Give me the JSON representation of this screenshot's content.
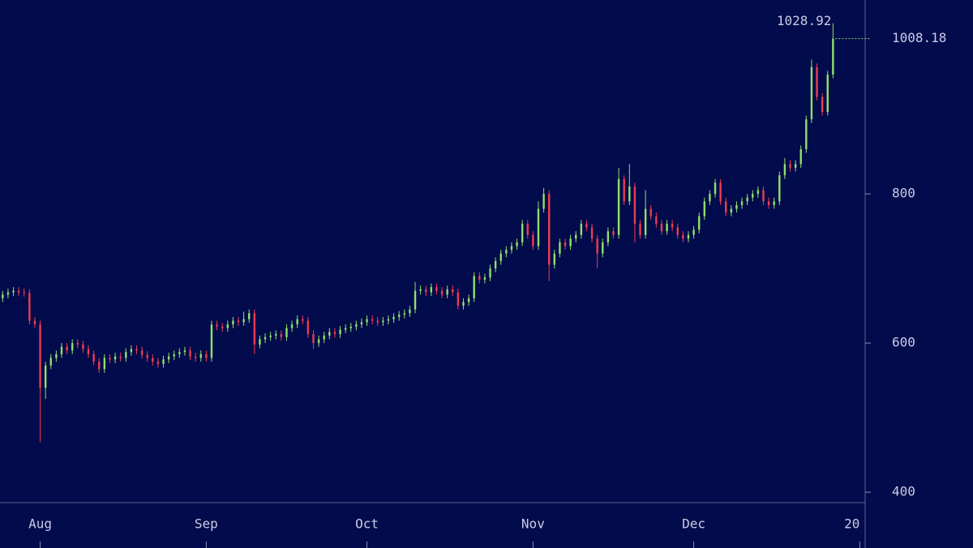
{
  "chart_data": {
    "type": "ohlc",
    "up_color": "#8fe06c",
    "down_color": "#ee3b52",
    "xlim": [
      -0.5,
      161
    ],
    "xticks": [
      {
        "value": 7,
        "label": "Aug"
      },
      {
        "value": 38,
        "label": "Sep"
      },
      {
        "value": 68,
        "label": "Oct"
      },
      {
        "value": 99,
        "label": "Nov"
      },
      {
        "value": 129,
        "label": "Dec"
      },
      {
        "value": 160,
        "label": "20"
      }
    ],
    "ylim": [
      386,
      1060
    ],
    "yticks": [
      400,
      600,
      800
    ],
    "open": [
      660,
      665,
      668,
      670,
      668,
      667,
      630,
      625,
      540,
      570,
      580,
      585,
      595,
      590,
      600,
      598,
      592,
      585,
      575,
      565,
      580,
      578,
      582,
      580,
      588,
      592,
      590,
      584,
      580,
      575,
      572,
      578,
      582,
      585,
      588,
      590,
      582,
      580,
      585,
      580,
      625,
      622,
      620,
      625,
      630,
      628,
      632,
      640,
      598,
      605,
      608,
      610,
      612,
      608,
      620,
      625,
      632,
      630,
      612,
      600,
      605,
      610,
      615,
      612,
      618,
      620,
      622,
      625,
      628,
      632,
      630,
      628,
      630,
      632,
      635,
      638,
      640,
      645,
      670,
      672,
      668,
      675,
      670,
      665,
      672,
      668,
      650,
      655,
      660,
      690,
      685,
      688,
      700,
      710,
      720,
      725,
      730,
      735,
      760,
      745,
      730,
      780,
      800,
      705,
      720,
      735,
      730,
      740,
      745,
      760,
      755,
      740,
      720,
      735,
      750,
      745,
      820,
      790,
      810,
      760,
      745,
      780,
      770,
      760,
      750,
      760,
      755,
      745,
      740,
      745,
      752,
      770,
      790,
      800,
      815,
      790,
      775,
      780,
      785,
      790,
      795,
      800,
      805,
      790,
      785,
      790,
      825,
      840,
      835,
      840,
      860,
      900,
      970,
      930,
      910,
      960
    ],
    "high": [
      670,
      673,
      675,
      675,
      673,
      672,
      635,
      630,
      575,
      585,
      590,
      600,
      600,
      605,
      605,
      603,
      597,
      590,
      580,
      585,
      585,
      587,
      587,
      593,
      597,
      597,
      595,
      589,
      585,
      580,
      583,
      587,
      590,
      593,
      595,
      595,
      587,
      590,
      590,
      630,
      630,
      627,
      630,
      635,
      635,
      642,
      645,
      645,
      610,
      613,
      615,
      617,
      617,
      625,
      630,
      637,
      637,
      635,
      617,
      610,
      615,
      620,
      620,
      623,
      625,
      627,
      630,
      633,
      637,
      637,
      635,
      635,
      637,
      640,
      643,
      645,
      650,
      682,
      677,
      677,
      680,
      680,
      675,
      677,
      677,
      673,
      660,
      665,
      695,
      695,
      693,
      705,
      715,
      725,
      730,
      735,
      740,
      765,
      765,
      750,
      790,
      808,
      805,
      725,
      740,
      740,
      745,
      750,
      765,
      765,
      760,
      745,
      740,
      755,
      755,
      835,
      825,
      840,
      815,
      765,
      805,
      785,
      775,
      765,
      765,
      765,
      760,
      750,
      750,
      757,
      775,
      795,
      805,
      820,
      820,
      795,
      785,
      790,
      795,
      800,
      805,
      810,
      810,
      795,
      795,
      830,
      848,
      845,
      845,
      865,
      905,
      980,
      975,
      935,
      965,
      1028.92
    ],
    "low": [
      655,
      660,
      663,
      663,
      662,
      625,
      620,
      467,
      525,
      565,
      575,
      580,
      585,
      585,
      593,
      587,
      580,
      570,
      560,
      560,
      573,
      573,
      575,
      575,
      583,
      585,
      579,
      575,
      570,
      567,
      567,
      573,
      577,
      580,
      583,
      577,
      575,
      575,
      575,
      575,
      617,
      615,
      615,
      620,
      623,
      623,
      627,
      585,
      593,
      600,
      603,
      605,
      603,
      603,
      615,
      620,
      625,
      607,
      592,
      595,
      600,
      605,
      607,
      607,
      613,
      615,
      617,
      620,
      623,
      625,
      623,
      623,
      625,
      627,
      630,
      633,
      635,
      640,
      665,
      663,
      663,
      665,
      660,
      660,
      663,
      645,
      645,
      650,
      655,
      680,
      680,
      683,
      695,
      705,
      715,
      720,
      725,
      730,
      740,
      725,
      725,
      775,
      683,
      700,
      715,
      725,
      725,
      735,
      740,
      750,
      735,
      700,
      715,
      730,
      740,
      740,
      785,
      785,
      735,
      740,
      740,
      765,
      755,
      745,
      745,
      750,
      740,
      735,
      735,
      740,
      747,
      765,
      785,
      795,
      785,
      770,
      770,
      775,
      780,
      785,
      790,
      795,
      785,
      780,
      780,
      785,
      820,
      830,
      830,
      835,
      855,
      895,
      925,
      905,
      905,
      955
    ],
    "close": [
      665,
      668,
      670,
      668,
      667,
      630,
      625,
      540,
      570,
      580,
      585,
      595,
      590,
      600,
      598,
      592,
      585,
      575,
      565,
      580,
      578,
      582,
      580,
      588,
      592,
      590,
      584,
      580,
      575,
      572,
      578,
      582,
      585,
      588,
      590,
      582,
      580,
      585,
      580,
      625,
      622,
      620,
      625,
      630,
      628,
      632,
      640,
      598,
      605,
      608,
      610,
      612,
      608,
      620,
      625,
      632,
      630,
      612,
      600,
      605,
      610,
      615,
      612,
      618,
      620,
      622,
      625,
      628,
      632,
      630,
      628,
      630,
      632,
      635,
      638,
      640,
      645,
      670,
      672,
      668,
      675,
      670,
      665,
      672,
      668,
      650,
      655,
      660,
      690,
      685,
      688,
      700,
      710,
      720,
      725,
      730,
      735,
      760,
      745,
      730,
      780,
      800,
      705,
      720,
      735,
      730,
      740,
      745,
      760,
      755,
      740,
      720,
      735,
      750,
      745,
      820,
      790,
      810,
      760,
      745,
      780,
      770,
      760,
      750,
      760,
      755,
      745,
      740,
      745,
      752,
      770,
      790,
      800,
      815,
      790,
      775,
      780,
      785,
      790,
      795,
      800,
      805,
      790,
      785,
      790,
      825,
      840,
      835,
      840,
      860,
      900,
      970,
      930,
      910,
      960,
      1008.18
    ]
  }
}
